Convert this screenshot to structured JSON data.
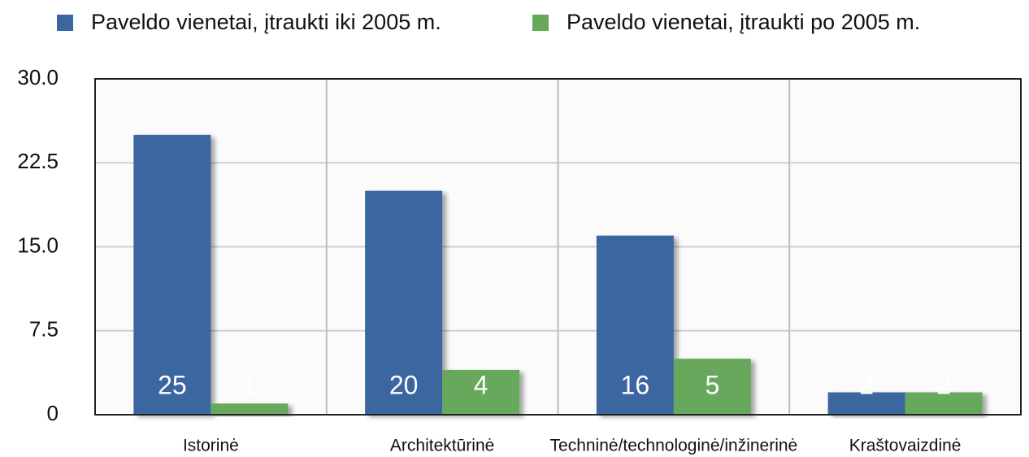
{
  "chart_data": {
    "type": "bar",
    "categories": [
      "Istorinė",
      "Architektūrinė",
      "Techninė/technologinė/inžinerinė",
      "Kraštovaizdinė"
    ],
    "series": [
      {
        "name": "Paveldo vienetai, įtraukti iki 2005 m.",
        "color": "#3b66a0",
        "values": [
          25,
          20,
          16,
          2
        ]
      },
      {
        "name": "Paveldo vienetai, įtraukti po 2005 m.",
        "color": "#67a85b",
        "values": [
          1,
          4,
          5,
          2
        ]
      }
    ],
    "ylim": [
      0,
      30
    ],
    "yticks": [
      0,
      7.5,
      {
        "value": 15,
        "label": "15.0"
      },
      22.5,
      {
        "value": 30,
        "label": "30.0"
      }
    ],
    "grid": true
  }
}
